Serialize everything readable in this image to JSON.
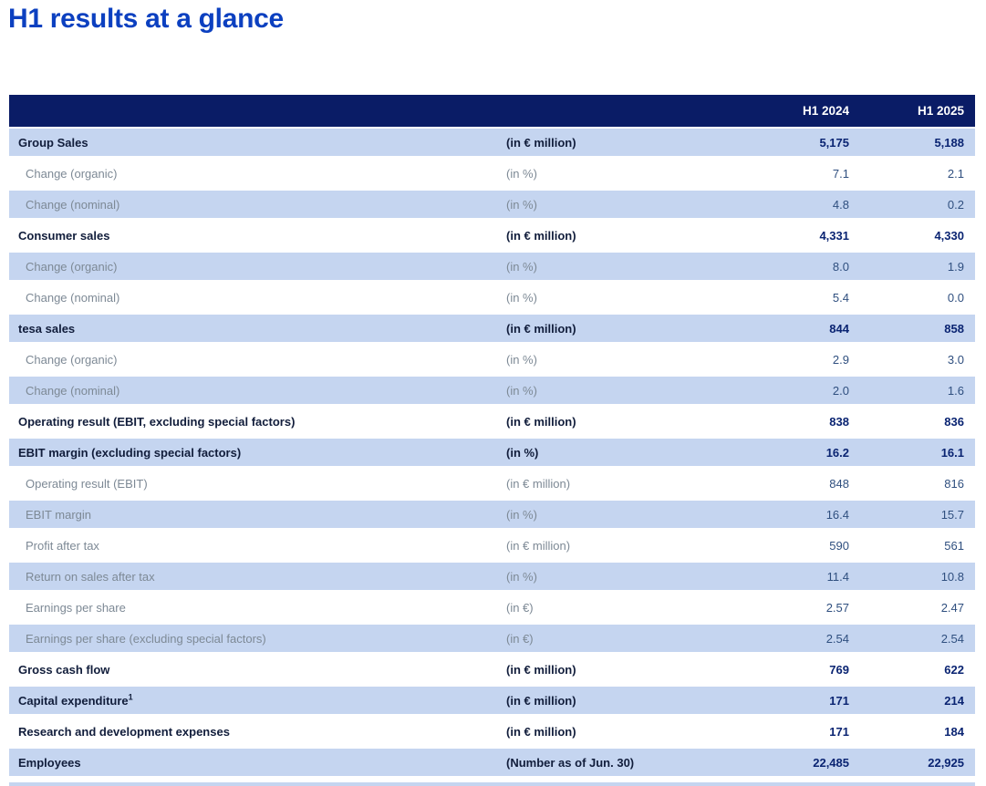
{
  "page": {
    "title": "H1 results at a glance"
  },
  "colors": {
    "title_blue": "#0c40c0",
    "header_navy": "#0a1c66",
    "band_light_blue": "#c5d5f0",
    "bold_value_navy": "#0a2472",
    "bold_label_dark": "#111d3b",
    "sub_label_gray": "#7d8995",
    "sub_value_slate": "#2f4f7f"
  },
  "table": {
    "column_headers": {
      "h1_2024": "H1 2024",
      "h1_2025": "H1 2025"
    },
    "rows": [
      {
        "label": "Group Sales",
        "unit": "(in € million)",
        "h1_2024": "5,175",
        "h1_2025": "5,188",
        "bold": true
      },
      {
        "label": "Change (organic)",
        "unit": "(in %)",
        "h1_2024": "7.1",
        "h1_2025": "2.1",
        "bold": false
      },
      {
        "label": "Change (nominal)",
        "unit": "(in %)",
        "h1_2024": "4.8",
        "h1_2025": "0.2",
        "bold": false
      },
      {
        "label": "Consumer sales",
        "unit": "(in € million)",
        "h1_2024": "4,331",
        "h1_2025": "4,330",
        "bold": true
      },
      {
        "label": "Change (organic)",
        "unit": "(in %)",
        "h1_2024": "8.0",
        "h1_2025": "1.9",
        "bold": false
      },
      {
        "label": "Change (nominal)",
        "unit": "(in %)",
        "h1_2024": "5.4",
        "h1_2025": "0.0",
        "bold": false
      },
      {
        "label": "tesa sales",
        "unit": "(in € million)",
        "h1_2024": "844",
        "h1_2025": "858",
        "bold": true
      },
      {
        "label": "Change (organic)",
        "unit": "(in %)",
        "h1_2024": "2.9",
        "h1_2025": "3.0",
        "bold": false
      },
      {
        "label": "Change (nominal)",
        "unit": "(in %)",
        "h1_2024": "2.0",
        "h1_2025": "1.6",
        "bold": false
      },
      {
        "label": "Operating result (EBIT, excluding special factors)",
        "unit": "(in € million)",
        "h1_2024": "838",
        "h1_2025": "836",
        "bold": true
      },
      {
        "label": "EBIT margin (excluding special factors)",
        "unit": "(in %)",
        "h1_2024": "16.2",
        "h1_2025": "16.1",
        "bold": true
      },
      {
        "label": "Operating result (EBIT)",
        "unit": "(in € million)",
        "h1_2024": "848",
        "h1_2025": "816",
        "bold": false
      },
      {
        "label": "EBIT margin",
        "unit": "(in %)",
        "h1_2024": "16.4",
        "h1_2025": "15.7",
        "bold": false
      },
      {
        "label": "Profit after tax",
        "unit": "(in € million)",
        "h1_2024": "590",
        "h1_2025": "561",
        "bold": false
      },
      {
        "label": "Return on sales after tax",
        "unit": "(in %)",
        "h1_2024": "11.4",
        "h1_2025": "10.8",
        "bold": false
      },
      {
        "label": "Earnings per share",
        "unit": "(in €)",
        "h1_2024": "2.57",
        "h1_2025": "2.47",
        "bold": false
      },
      {
        "label": "Earnings per share (excluding special factors)",
        "unit": "(in €)",
        "h1_2024": "2.54",
        "h1_2025": "2.54",
        "bold": false
      },
      {
        "label": "Gross cash flow",
        "unit": "(in € million)",
        "h1_2024": "769",
        "h1_2025": "622",
        "bold": true
      },
      {
        "label": "Capital expenditure",
        "sup": "1",
        "unit": "(in € million)",
        "h1_2024": "171",
        "h1_2025": "214",
        "bold": true
      },
      {
        "label": "Research and development expenses",
        "unit": "(in € million)",
        "h1_2024": "171",
        "h1_2025": "184",
        "bold": true
      },
      {
        "label": "Employees",
        "unit": "(Number as of Jun. 30)",
        "h1_2024": "22,485",
        "h1_2025": "22,925",
        "bold": true
      }
    ]
  }
}
